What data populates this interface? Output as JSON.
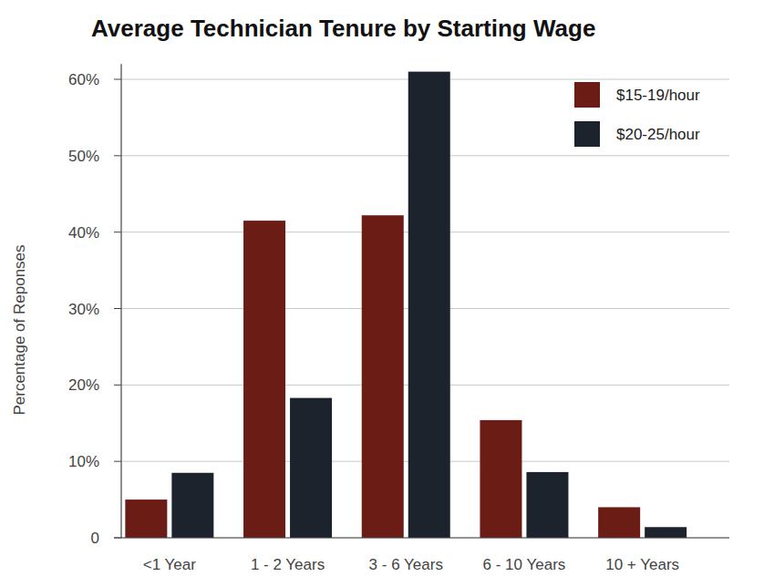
{
  "chart_data": {
    "type": "bar",
    "title": "Average Technician Tenure by Starting Wage",
    "y_label": "Percentage of Reponses",
    "categories": [
      "<1 Year",
      "1 - 2 Years",
      "3 - 6 Years",
      "6 - 10 Years",
      "10 + Years"
    ],
    "series": [
      {
        "name": "$15-19/hour",
        "color": "#6b1c14",
        "values": [
          5,
          41.5,
          42.2,
          15.4,
          4
        ]
      },
      {
        "name": "$20-25/hour",
        "color": "#1c232c",
        "values": [
          8.5,
          18.3,
          61,
          8.6,
          1.4
        ]
      }
    ],
    "ylim": [
      0,
      62
    ],
    "yticks": [
      0,
      {
        "value": 10,
        "label": "10%"
      },
      {
        "value": 20,
        "label": "20%"
      },
      {
        "value": 30,
        "label": "30%"
      },
      {
        "value": 40,
        "label": "40%"
      },
      {
        "value": 50,
        "label": "50%"
      },
      {
        "value": 60,
        "label": "60%"
      }
    ],
    "grid": true,
    "legend": "top-right"
  }
}
